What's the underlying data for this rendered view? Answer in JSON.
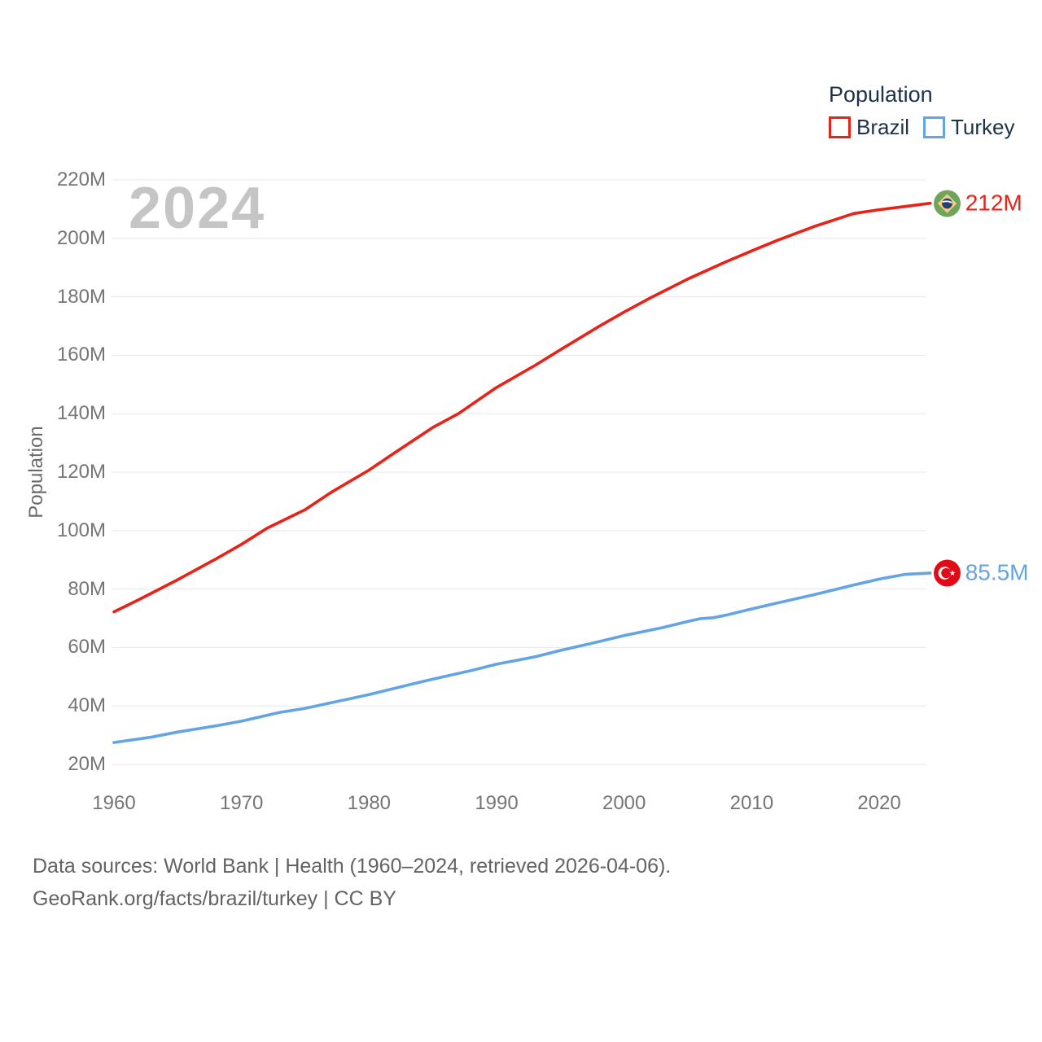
{
  "legend": {
    "title": "Population",
    "items": [
      {
        "label": "Brazil"
      },
      {
        "label": "Turkey"
      }
    ]
  },
  "watermark": "2024",
  "y_axis_title": "Population",
  "footer": {
    "line1": "Data sources: World Bank | Health (1960–2024, retrieved 2026-04-06).",
    "line2": "GeoRank.org/facts/brazil/turkey | CC BY"
  },
  "chart_data": {
    "type": "line",
    "title": "Population",
    "xlabel": "",
    "ylabel": "Population",
    "xlim": [
      1960,
      2024
    ],
    "ylim": [
      20,
      220
    ],
    "grid": true,
    "legend_position": "top-right",
    "x_ticks": [
      1960,
      1970,
      1980,
      1990,
      2000,
      2010,
      2020
    ],
    "y_ticks": [
      20,
      40,
      60,
      80,
      100,
      120,
      140,
      160,
      180,
      200,
      220
    ],
    "y_tick_suffix": "M",
    "series": [
      {
        "name": "Brazil",
        "color": "#ea2117",
        "end_label": "212M",
        "flag": "brazil",
        "points": [
          [
            1960,
            72.2
          ],
          [
            1962,
            76.5
          ],
          [
            1965,
            83.2
          ],
          [
            1968,
            90.3
          ],
          [
            1970,
            95.3
          ],
          [
            1972,
            100.8
          ],
          [
            1975,
            107.2
          ],
          [
            1977,
            113.0
          ],
          [
            1980,
            120.7
          ],
          [
            1982,
            126.6
          ],
          [
            1985,
            135.3
          ],
          [
            1987,
            140.0
          ],
          [
            1990,
            149.0
          ],
          [
            1993,
            156.5
          ],
          [
            1995,
            161.9
          ],
          [
            1998,
            169.8
          ],
          [
            2000,
            174.8
          ],
          [
            2002,
            179.5
          ],
          [
            2005,
            186.1
          ],
          [
            2008,
            192.0
          ],
          [
            2010,
            195.7
          ],
          [
            2012,
            199.3
          ],
          [
            2015,
            204.2
          ],
          [
            2018,
            208.5
          ],
          [
            2020,
            209.8
          ],
          [
            2022,
            210.9
          ],
          [
            2024,
            212.0
          ]
        ]
      },
      {
        "name": "Turkey",
        "color": "#64a3e6",
        "end_label": "85.5M",
        "flag": "turkey",
        "points": [
          [
            1960,
            27.5
          ],
          [
            1963,
            29.4
          ],
          [
            1965,
            31.1
          ],
          [
            1968,
            33.2
          ],
          [
            1970,
            34.8
          ],
          [
            1973,
            37.8
          ],
          [
            1975,
            39.2
          ],
          [
            1978,
            42.0
          ],
          [
            1980,
            43.9
          ],
          [
            1983,
            47.1
          ],
          [
            1985,
            49.2
          ],
          [
            1988,
            52.1
          ],
          [
            1990,
            54.3
          ],
          [
            1993,
            56.8
          ],
          [
            1995,
            59.0
          ],
          [
            1998,
            62.0
          ],
          [
            2000,
            64.1
          ],
          [
            2003,
            66.8
          ],
          [
            2005,
            68.9
          ],
          [
            2006,
            69.9
          ],
          [
            2007,
            70.2
          ],
          [
            2008,
            71.1
          ],
          [
            2010,
            73.2
          ],
          [
            2012,
            75.2
          ],
          [
            2015,
            78.2
          ],
          [
            2018,
            81.4
          ],
          [
            2020,
            83.4
          ],
          [
            2022,
            85.0
          ],
          [
            2024,
            85.5
          ]
        ]
      }
    ]
  }
}
